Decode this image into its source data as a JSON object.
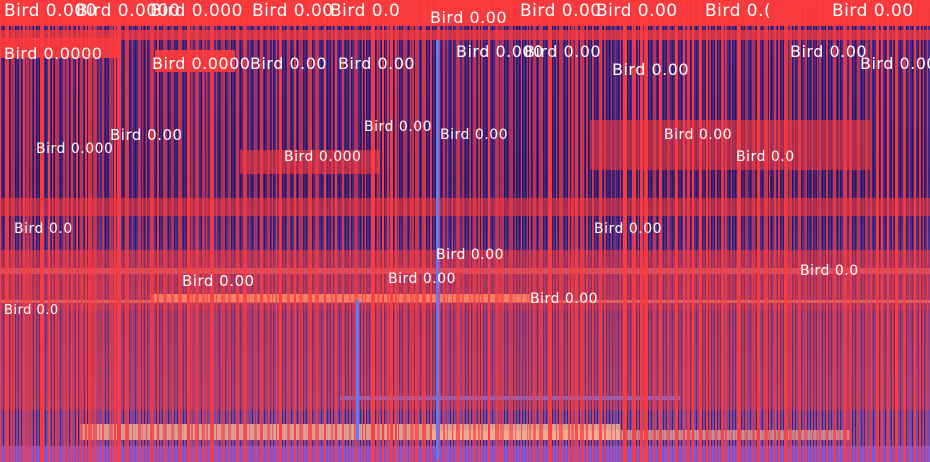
{
  "overlay": {
    "label_text": "Bird",
    "label_fill": "#ffffff",
    "box_color": "#ff3b3b",
    "background_color": "#3a1f6e"
  },
  "labels": [
    "Bird 0.000",
    "Bird 0.0000",
    "Bird 0.000",
    "Bird 0.00",
    "Bird 0.0",
    "Bird 0.00",
    "Bird 0.00",
    "Bird 0.00",
    "Bird 0.(",
    "Bird 0.00",
    "Bird 0.0000",
    "Bird 0.0000",
    "Bird 0.00",
    "Bird 0.00",
    "Bird 0.000",
    "Bird 0.00",
    "Bird 0.00",
    "Bird 0.00",
    "Bird 0.00",
    "Bird 0.00",
    "Bird 0.000",
    "Bird 0.000",
    "Bird 0.00",
    "Bird 0.00",
    "Bird 0.00",
    "Bird 0.0",
    "Bird 0.0",
    "Bird 0.00",
    "Bird 0.00",
    "Bird 0.00",
    "Bird 0.00",
    "Bird 0.0",
    "Bird 0.0",
    "Bird 0.00"
  ]
}
